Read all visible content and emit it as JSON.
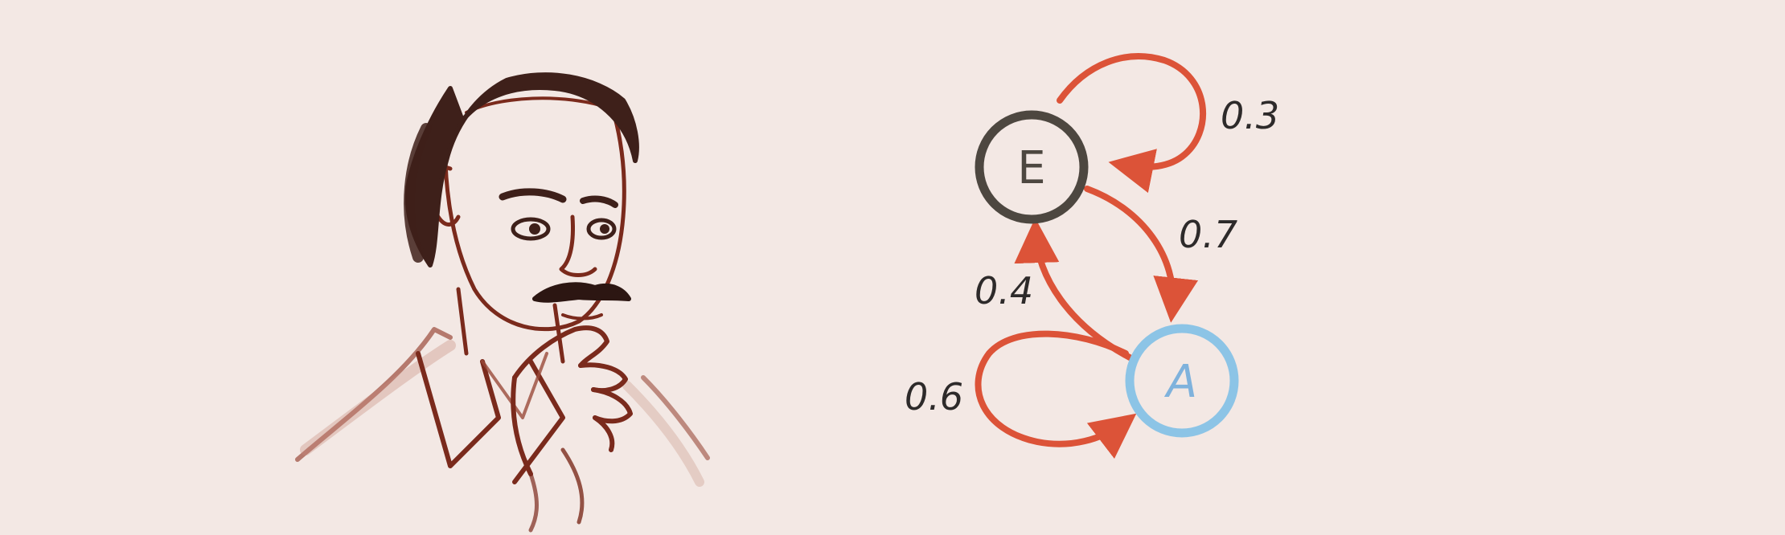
{
  "diagram": {
    "type": "markov-chain",
    "nodes": [
      {
        "id": "E",
        "label": "E",
        "color": "#4d4740"
      },
      {
        "id": "A",
        "label": "A",
        "color": "#8cc4e6"
      }
    ],
    "edges": [
      {
        "from": "E",
        "to": "E",
        "probability": "0.3"
      },
      {
        "from": "E",
        "to": "A",
        "probability": "0.7"
      },
      {
        "from": "A",
        "to": "E",
        "probability": "0.4"
      },
      {
        "from": "A",
        "to": "A",
        "probability": "0.6"
      }
    ],
    "edge_color": "#dc5338"
  },
  "colors": {
    "background": "#f3e8e4",
    "sketch_ink": "#7a2a1c",
    "hair": "#3e201a"
  },
  "illustration": {
    "icon": "thinking-man-sketch-icon"
  }
}
